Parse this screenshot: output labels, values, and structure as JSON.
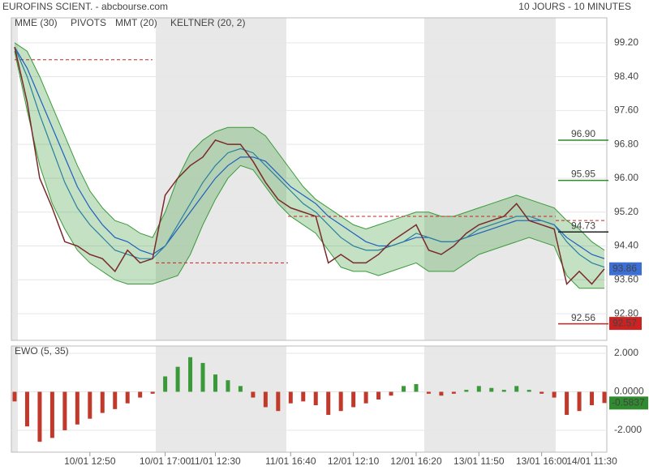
{
  "header": {
    "title": "EUROFINS SCIENT. - abcbourse.com",
    "period": "10 JOURS - 10 MINUTES"
  },
  "chart_data": [
    {
      "type": "line",
      "legend": [
        {
          "label": "MME (30)",
          "color": "#1f5fbf"
        },
        {
          "label": "PIVOTS",
          "color": "#444444"
        },
        {
          "label": "MMT (20)",
          "color": "#1f5fbf"
        },
        {
          "label": "KELTNER (20, 2)",
          "color": "#3a9a3a"
        }
      ],
      "categories": [
        null,
        null,
        null,
        null,
        null,
        null,
        "10/01 12:50",
        null,
        null,
        null,
        null,
        null,
        "10/01 17:00",
        null,
        null,
        null,
        "11/01 12:30",
        null,
        null,
        null,
        null,
        null,
        "11/01 16:40",
        null,
        null,
        null,
        null,
        "12/01 12:10",
        null,
        null,
        null,
        null,
        "12/01 16:20",
        null,
        null,
        null,
        null,
        "13/01 11:50",
        null,
        null,
        null,
        null,
        "13/01 16:00",
        null,
        null,
        null,
        "14/01 11:30",
        null
      ],
      "ylim": [
        92.17,
        99.79
      ],
      "yticks": [
        {
          "value": 92.8,
          "label": "92.80"
        },
        {
          "value": 93.6,
          "label": "93.60"
        },
        {
          "value": 94.4,
          "label": "94.40"
        },
        {
          "value": 95.2,
          "label": "95.20"
        },
        {
          "value": 96.0,
          "label": "96.00"
        },
        {
          "value": 96.8,
          "label": "96.80"
        },
        {
          "value": 97.6,
          "label": "97.60"
        },
        {
          "value": 98.4,
          "label": "98.40"
        },
        {
          "value": 99.2,
          "label": "99.20"
        }
      ],
      "grid": true,
      "series": [
        {
          "color": "#7a2a2a",
          "values": [
            99.1,
            97.8,
            96.0,
            95.3,
            94.5,
            94.4,
            94.2,
            94.1,
            93.8,
            94.3,
            94.0,
            94.1,
            95.6,
            96.0,
            96.3,
            96.5,
            96.9,
            96.8,
            96.8,
            96.4,
            95.9,
            95.5,
            95.3,
            95.2,
            95.1,
            94.0,
            94.2,
            94.0,
            94.0,
            94.2,
            94.5,
            94.7,
            94.9,
            94.3,
            94.2,
            94.4,
            94.7,
            94.9,
            95.0,
            95.1,
            95.4,
            95.0,
            94.9,
            94.8,
            93.5,
            93.8,
            93.5,
            93.86
          ]
        },
        {
          "name": "MME (30)",
          "color": "#1f5fbf",
          "values": [
            99.1,
            98.6,
            97.9,
            97.2,
            96.5,
            95.8,
            95.3,
            94.9,
            94.6,
            94.5,
            94.3,
            94.2,
            94.4,
            94.8,
            95.2,
            95.6,
            96.0,
            96.3,
            96.5,
            96.5,
            96.4,
            96.1,
            95.8,
            95.6,
            95.4,
            95.1,
            94.9,
            94.7,
            94.5,
            94.4,
            94.4,
            94.5,
            94.6,
            94.6,
            94.5,
            94.5,
            94.6,
            94.7,
            94.8,
            94.9,
            95.0,
            95.0,
            95.0,
            94.9,
            94.6,
            94.4,
            94.2,
            94.1
          ]
        },
        {
          "name": "MMT (20)",
          "color": "#2a7f9f",
          "values": [
            99.1,
            98.4,
            97.5,
            96.7,
            95.9,
            95.3,
            94.9,
            94.6,
            94.3,
            94.2,
            94.1,
            94.1,
            94.4,
            94.9,
            95.4,
            95.9,
            96.3,
            96.6,
            96.7,
            96.6,
            96.3,
            96.0,
            95.7,
            95.4,
            95.2,
            94.9,
            94.6,
            94.4,
            94.3,
            94.3,
            94.4,
            94.5,
            94.7,
            94.6,
            94.5,
            94.5,
            94.6,
            94.8,
            94.9,
            95.0,
            95.1,
            95.1,
            95.0,
            94.9,
            94.5,
            94.2,
            94.0,
            93.9
          ]
        },
        {
          "color": "#3a9a3a",
          "values": [
            99.2,
            99.0,
            98.4,
            97.7,
            97.0,
            96.3,
            95.7,
            95.3,
            95.0,
            94.9,
            94.7,
            94.6,
            95.2,
            96.0,
            96.6,
            96.9,
            97.1,
            97.2,
            97.2,
            97.2,
            97.0,
            96.6,
            96.2,
            95.8,
            95.5,
            95.3,
            95.1,
            94.9,
            94.8,
            94.9,
            95.0,
            95.1,
            95.2,
            95.2,
            95.1,
            95.1,
            95.2,
            95.3,
            95.4,
            95.5,
            95.6,
            95.5,
            95.4,
            95.3,
            95.0,
            94.8,
            94.5,
            94.3
          ]
        },
        {
          "color": "#3a9a3a",
          "values": [
            99.0,
            97.6,
            96.3,
            95.4,
            94.8,
            94.3,
            94.0,
            93.8,
            93.6,
            93.5,
            93.5,
            93.5,
            93.6,
            93.7,
            94.2,
            94.9,
            95.5,
            96.0,
            96.3,
            96.2,
            95.8,
            95.4,
            95.1,
            94.9,
            94.7,
            94.3,
            93.9,
            93.8,
            93.8,
            93.7,
            93.8,
            93.9,
            94.0,
            93.8,
            93.8,
            93.8,
            94.0,
            94.2,
            94.3,
            94.4,
            94.5,
            94.6,
            94.5,
            94.4,
            93.7,
            93.4,
            93.4,
            93.4
          ]
        }
      ],
      "pivots": [
        98.8,
        94.0,
        95.1,
        95.0
      ],
      "levels": [
        {
          "value": 96.9,
          "label": "96.90",
          "color": "#2e8b2e"
        },
        {
          "value": 95.95,
          "label": "95.95",
          "color": "#2e8b2e"
        },
        {
          "value": 94.73,
          "label": "94.73",
          "color": "#222222"
        },
        {
          "value": 92.56,
          "label": "92.56",
          "color": "#cc2222"
        }
      ],
      "last": 93.86,
      "last_color": "#3b6fd6",
      "low": 92.57,
      "low_color": "#cc2222"
    },
    {
      "type": "bar",
      "title": "EWO (5, 35)",
      "values": [
        -0.5,
        -1.8,
        -2.6,
        -2.4,
        -2.0,
        -1.7,
        -1.4,
        -1.1,
        -0.9,
        -0.6,
        -0.3,
        -0.1,
        0.8,
        1.3,
        1.8,
        1.5,
        0.9,
        0.6,
        0.3,
        -0.3,
        -0.8,
        -1.0,
        -0.6,
        -0.5,
        -0.7,
        -1.2,
        -1.0,
        -0.8,
        -0.6,
        -0.4,
        -0.2,
        0.3,
        0.4,
        -0.1,
        -0.2,
        -0.1,
        0.1,
        0.3,
        0.2,
        0.1,
        0.3,
        0.1,
        -0.1,
        -0.3,
        -1.2,
        -1.0,
        -0.7,
        -0.5837
      ],
      "ylim": [
        -3.14,
        2.38
      ],
      "yticks": [
        {
          "value": -2,
          "label": "-2.000"
        },
        {
          "value": 0,
          "label": "0.0000"
        },
        {
          "value": 2,
          "label": "2.000"
        }
      ],
      "grid": true,
      "colors": {
        "up": "#3a9a3a",
        "down": "#c0392b"
      },
      "last": -0.5837,
      "last_color": "#2e8b2e"
    }
  ]
}
